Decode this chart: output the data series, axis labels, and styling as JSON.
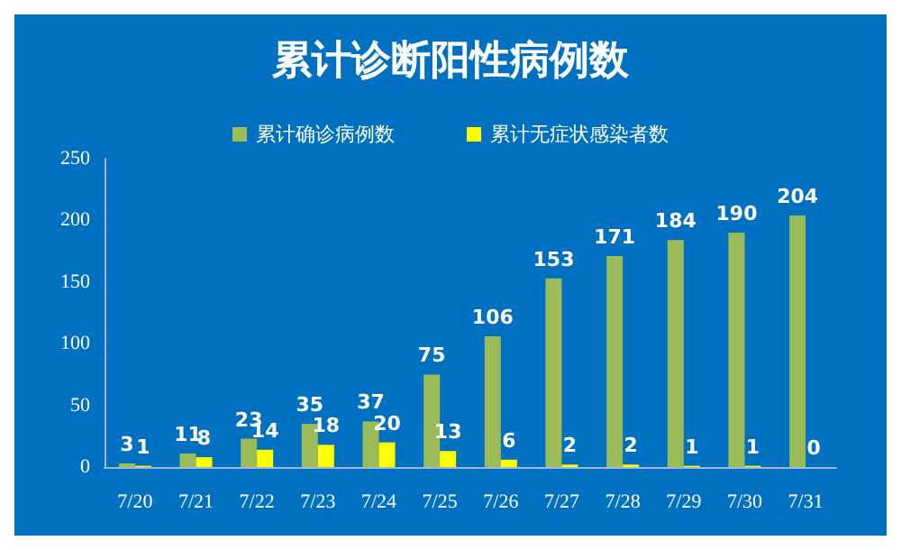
{
  "chart_data": {
    "type": "bar",
    "title": "累计诊断阳性病例数",
    "categories": [
      "7/20",
      "7/21",
      "7/22",
      "7/23",
      "7/24",
      "7/25",
      "7/26",
      "7/27",
      "7/28",
      "7/29",
      "7/30",
      "7/31"
    ],
    "series": [
      {
        "name": "累计确诊病例数",
        "color": "#9bbb59",
        "values": [
          3,
          11,
          23,
          35,
          37,
          75,
          106,
          153,
          171,
          184,
          190,
          204
        ]
      },
      {
        "name": "累计无症状感染者数",
        "color": "#ffff00",
        "values": [
          1,
          8,
          14,
          18,
          20,
          13,
          6,
          2,
          2,
          1,
          1,
          0
        ]
      }
    ],
    "ylim": [
      0,
      250
    ],
    "yticks": [
      0,
      50,
      100,
      150,
      200,
      250
    ],
    "grid": false,
    "legend": "top",
    "data_labels": true
  }
}
